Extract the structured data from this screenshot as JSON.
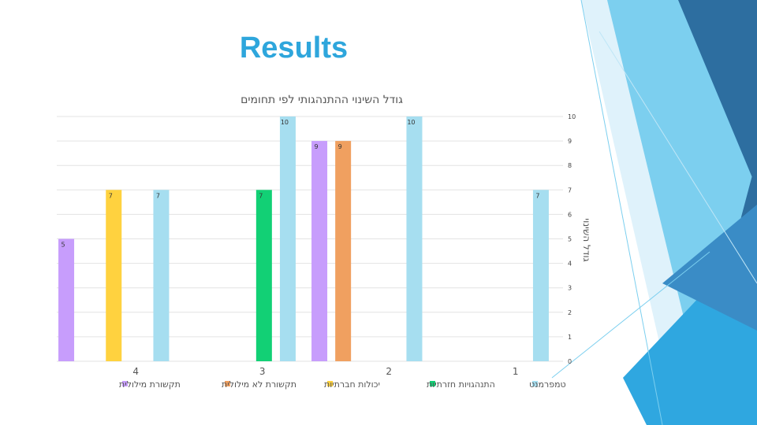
{
  "slide": {
    "title": "Results"
  },
  "colors": {
    "series": [
      "#a6def0",
      "#12d075",
      "#ffd23f",
      "#f0a060",
      "#c79dfc"
    ],
    "title": "#2ea6dc",
    "deco_dark": "#2d6ea0",
    "deco_mid": "#2fa7e0",
    "deco_light": "#7ccfef"
  },
  "chart_data": {
    "type": "bar",
    "title": "גודל השינוי ההתנהגותי לפי תחומים",
    "xlabel": "",
    "ylabel": "גודל השינוי",
    "y_axis_side": "right",
    "ylim": [
      0,
      10
    ],
    "yticks": [
      0,
      1,
      2,
      3,
      4,
      5,
      6,
      7,
      8,
      9,
      10
    ],
    "category_order": "right-to-left",
    "categories": [
      "1",
      "2",
      "3",
      "4"
    ],
    "grid": true,
    "legend": "bottom",
    "series": [
      {
        "name": "טמפרמנט",
        "values": [
          7,
          10,
          10,
          7
        ]
      },
      {
        "name": "התנהגויות חזרתיות",
        "values": [
          null,
          null,
          7,
          null
        ]
      },
      {
        "name": "יכולות חברתיות",
        "values": [
          null,
          null,
          null,
          7
        ]
      },
      {
        "name": "תקשורת לא מילולית",
        "values": [
          null,
          9,
          null,
          null
        ]
      },
      {
        "name": "תקשורת מילולית",
        "values": [
          null,
          9,
          null,
          5
        ]
      }
    ]
  }
}
